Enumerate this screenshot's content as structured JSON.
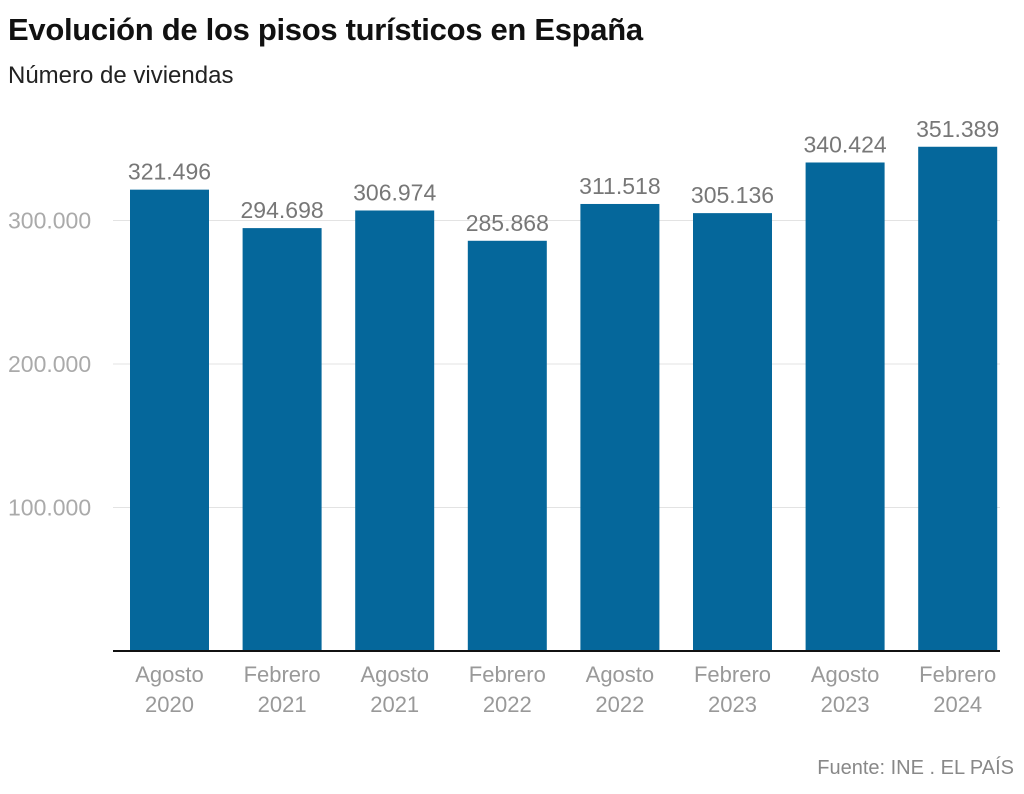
{
  "title": "Evolución de los pisos turísticos en España",
  "subtitle": "Número de viviendas",
  "source": "Fuente: INE . EL PAÍS",
  "colors": {
    "bar": "#05679b",
    "grid": "#e3e3e3",
    "axis": "#111111",
    "tick_text": "#aaaaaa",
    "value_text": "#777777",
    "category_text": "#999999"
  },
  "chart_data": {
    "type": "bar",
    "categories": [
      [
        "Agosto",
        "2020"
      ],
      [
        "Febrero",
        "2021"
      ],
      [
        "Agosto",
        "2021"
      ],
      [
        "Febrero",
        "2022"
      ],
      [
        "Agosto",
        "2022"
      ],
      [
        "Febrero",
        "2023"
      ],
      [
        "Agosto",
        "2023"
      ],
      [
        "Febrero",
        "2024"
      ]
    ],
    "values": [
      321496,
      294698,
      306974,
      285868,
      311518,
      305136,
      340424,
      351389
    ],
    "value_labels": [
      "321.496",
      "294.698",
      "306.974",
      "285.868",
      "311.518",
      "305.136",
      "340.424",
      "351.389"
    ],
    "y_ticks": [
      100000,
      200000,
      300000
    ],
    "y_tick_labels": [
      "100.000",
      "200.000",
      "300.000"
    ],
    "ylim": [
      0,
      360000
    ],
    "grid": true,
    "legend": "none"
  }
}
